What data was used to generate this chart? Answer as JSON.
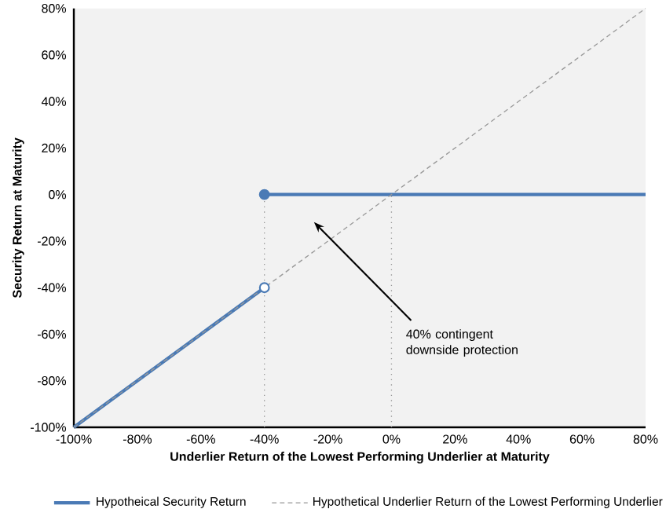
{
  "chart_data": {
    "type": "line",
    "xlabel": "Underlier Return of the Lowest Performing Underlier at Maturity",
    "ylabel": "Security Return at Maturity",
    "xlim": [
      -100,
      80
    ],
    "ylim": [
      -100,
      80
    ],
    "xticks": [
      {
        "value": -100,
        "label": "-100%"
      },
      {
        "value": -80,
        "label": "-80%"
      },
      {
        "value": -60,
        "label": "-60%"
      },
      {
        "value": -40,
        "label": "-40%"
      },
      {
        "value": -20,
        "label": "-20%"
      },
      {
        "value": 0,
        "label": "0%"
      },
      {
        "value": 20,
        "label": "20%"
      },
      {
        "value": 40,
        "label": "40%"
      },
      {
        "value": 60,
        "label": "60%"
      },
      {
        "value": 80,
        "label": "80%"
      }
    ],
    "yticks": [
      {
        "value": -100,
        "label": "-100%"
      },
      {
        "value": -80,
        "label": "-80%"
      },
      {
        "value": -60,
        "label": "-60%"
      },
      {
        "value": -40,
        "label": "-40%"
      },
      {
        "value": -20,
        "label": "-20%"
      },
      {
        "value": 0,
        "label": "0%"
      },
      {
        "value": 20,
        "label": "20%"
      },
      {
        "value": 40,
        "label": "40%"
      },
      {
        "value": 60,
        "label": "60%"
      },
      {
        "value": 80,
        "label": "80%"
      }
    ],
    "grid": false,
    "legend": "bottom",
    "series": [
      {
        "x": [
          -40,
          -40
        ],
        "values": [
          -100,
          0
        ],
        "color": "#999999",
        "line_style": "dotted"
      },
      {
        "x": [
          0,
          0
        ],
        "values": [
          -100,
          0
        ],
        "color": "#999999",
        "line_style": "dotted"
      },
      {
        "name": "Hypotheical Security Return",
        "x": [
          -100,
          -40,
          null,
          -40,
          80
        ],
        "values": [
          -100,
          -40,
          null,
          0,
          0
        ],
        "color": "#4a7ab5",
        "line_style": "solid"
      },
      {
        "name": "Hypothetical Underlier Return of the Lowest Performing Underlier",
        "x": [
          -100,
          80
        ],
        "values": [
          -100,
          80
        ],
        "color": "#999999",
        "line_style": "dashed"
      },
      {
        "type": "scatter",
        "x": [
          -40
        ],
        "values": [
          0
        ],
        "color": "#4a7ab5",
        "marker": "circle"
      },
      {
        "type": "scatter",
        "x": [
          -40
        ],
        "values": [
          -40
        ],
        "color": "#ffffff",
        "marker": "circle"
      }
    ],
    "annotations": [
      "40% contingent downside protection"
    ]
  }
}
